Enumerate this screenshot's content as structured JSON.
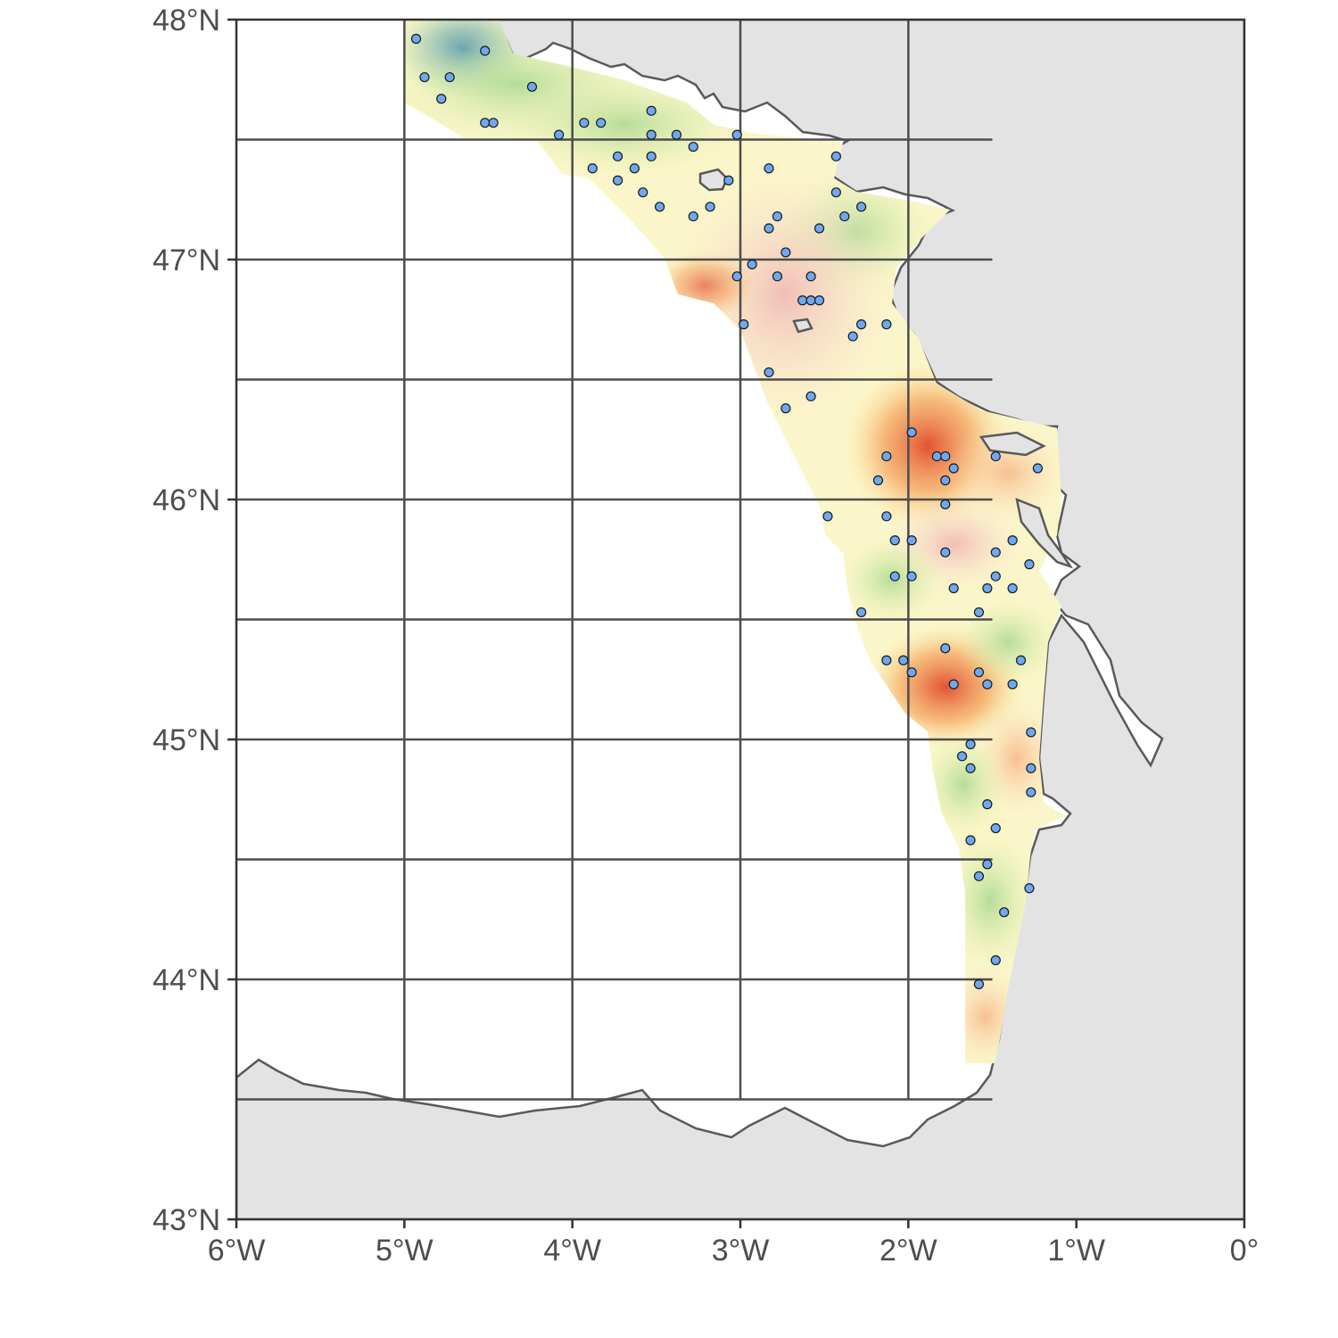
{
  "map": {
    "x_axis": {
      "range": [
        -6,
        0
      ],
      "ticks": [
        {
          "value": -6,
          "label": "6°W"
        },
        {
          "value": -5,
          "label": "5°W"
        },
        {
          "value": -4,
          "label": "4°W"
        },
        {
          "value": -3,
          "label": "3°W"
        },
        {
          "value": -2,
          "label": "2°W"
        },
        {
          "value": -1,
          "label": "1°W"
        },
        {
          "value": 0,
          "label": "0°"
        }
      ]
    },
    "y_axis": {
      "range": [
        43,
        48
      ],
      "ticks": [
        {
          "value": 48,
          "label": "48°N"
        },
        {
          "value": 47,
          "label": "47°N"
        },
        {
          "value": 46,
          "label": "46°N"
        },
        {
          "value": 45,
          "label": "45°N"
        },
        {
          "value": 44,
          "label": "44°N"
        },
        {
          "value": 43,
          "label": "43°N"
        }
      ]
    },
    "grid_lon": [
      -5,
      -4,
      -3,
      -2
    ],
    "grid_lat": [
      47.5,
      47,
      46.5,
      46,
      45.5,
      45,
      44.5,
      44,
      43.5
    ],
    "colors": {
      "land": "#e3e3e3",
      "sea": "#ffffff",
      "coastline": "#595959",
      "grid": "#4d4d4d",
      "station_fill": "#6fa8f0",
      "station_stroke": "#1a1a1a",
      "scale_low": "#2b7bba",
      "scale_mid": "#fffcc8",
      "scale_high": "#d73027"
    },
    "stations": [
      [
        -4.93,
        47.92
      ],
      [
        -4.52,
        47.87
      ],
      [
        -4.88,
        47.76
      ],
      [
        -4.73,
        47.76
      ],
      [
        -4.78,
        47.67
      ],
      [
        -4.24,
        47.72
      ],
      [
        -4.52,
        47.57
      ],
      [
        -4.47,
        47.57
      ],
      [
        -3.93,
        47.57
      ],
      [
        -3.83,
        47.57
      ],
      [
        -4.08,
        47.52
      ],
      [
        -3.53,
        47.62
      ],
      [
        -3.53,
        47.52
      ],
      [
        -3.38,
        47.52
      ],
      [
        -3.02,
        47.52
      ],
      [
        -3.28,
        47.47
      ],
      [
        -3.53,
        47.43
      ],
      [
        -3.73,
        47.43
      ],
      [
        -3.63,
        47.38
      ],
      [
        -3.88,
        47.38
      ],
      [
        -3.73,
        47.33
      ],
      [
        -3.58,
        47.28
      ],
      [
        -3.48,
        47.22
      ],
      [
        -3.28,
        47.18
      ],
      [
        -3.18,
        47.22
      ],
      [
        -3.07,
        47.33
      ],
      [
        -2.83,
        47.38
      ],
      [
        -2.43,
        47.43
      ],
      [
        -2.43,
        47.28
      ],
      [
        -2.28,
        47.22
      ],
      [
        -2.78,
        47.18
      ],
      [
        -2.38,
        47.18
      ],
      [
        -2.83,
        47.13
      ],
      [
        -2.53,
        47.13
      ],
      [
        -2.73,
        47.03
      ],
      [
        -2.93,
        46.98
      ],
      [
        -3.02,
        46.93
      ],
      [
        -2.78,
        46.93
      ],
      [
        -2.58,
        46.93
      ],
      [
        -2.63,
        46.83
      ],
      [
        -2.58,
        46.83
      ],
      [
        -2.53,
        46.83
      ],
      [
        -2.98,
        46.73
      ],
      [
        -2.28,
        46.73
      ],
      [
        -2.13,
        46.73
      ],
      [
        -2.33,
        46.68
      ],
      [
        -2.83,
        46.53
      ],
      [
        -2.58,
        46.43
      ],
      [
        -2.73,
        46.38
      ],
      [
        -1.98,
        46.28
      ],
      [
        -2.13,
        46.18
      ],
      [
        -1.83,
        46.18
      ],
      [
        -1.78,
        46.18
      ],
      [
        -1.48,
        46.18
      ],
      [
        -1.23,
        46.13
      ],
      [
        -1.73,
        46.13
      ],
      [
        -2.18,
        46.08
      ],
      [
        -1.78,
        46.08
      ],
      [
        -1.78,
        45.98
      ],
      [
        -2.48,
        45.93
      ],
      [
        -2.13,
        45.93
      ],
      [
        -2.08,
        45.83
      ],
      [
        -1.98,
        45.83
      ],
      [
        -1.38,
        45.83
      ],
      [
        -1.78,
        45.78
      ],
      [
        -1.48,
        45.78
      ],
      [
        -1.28,
        45.73
      ],
      [
        -2.08,
        45.68
      ],
      [
        -1.98,
        45.68
      ],
      [
        -1.48,
        45.68
      ],
      [
        -1.73,
        45.63
      ],
      [
        -1.53,
        45.63
      ],
      [
        -1.38,
        45.63
      ],
      [
        -2.28,
        45.53
      ],
      [
        -1.58,
        45.53
      ],
      [
        -1.78,
        45.38
      ],
      [
        -2.13,
        45.33
      ],
      [
        -2.03,
        45.33
      ],
      [
        -1.33,
        45.33
      ],
      [
        -1.98,
        45.28
      ],
      [
        -1.58,
        45.28
      ],
      [
        -1.73,
        45.23
      ],
      [
        -1.53,
        45.23
      ],
      [
        -1.38,
        45.23
      ],
      [
        -1.27,
        45.03
      ],
      [
        -1.63,
        44.98
      ],
      [
        -1.68,
        44.93
      ],
      [
        -1.63,
        44.88
      ],
      [
        -1.27,
        44.88
      ],
      [
        -1.27,
        44.78
      ],
      [
        -1.53,
        44.73
      ],
      [
        -1.48,
        44.63
      ],
      [
        -1.63,
        44.58
      ],
      [
        -1.53,
        44.48
      ],
      [
        -1.58,
        44.43
      ],
      [
        -1.28,
        44.38
      ],
      [
        -1.43,
        44.28
      ],
      [
        -1.48,
        44.08
      ],
      [
        -1.58,
        43.98
      ]
    ]
  }
}
